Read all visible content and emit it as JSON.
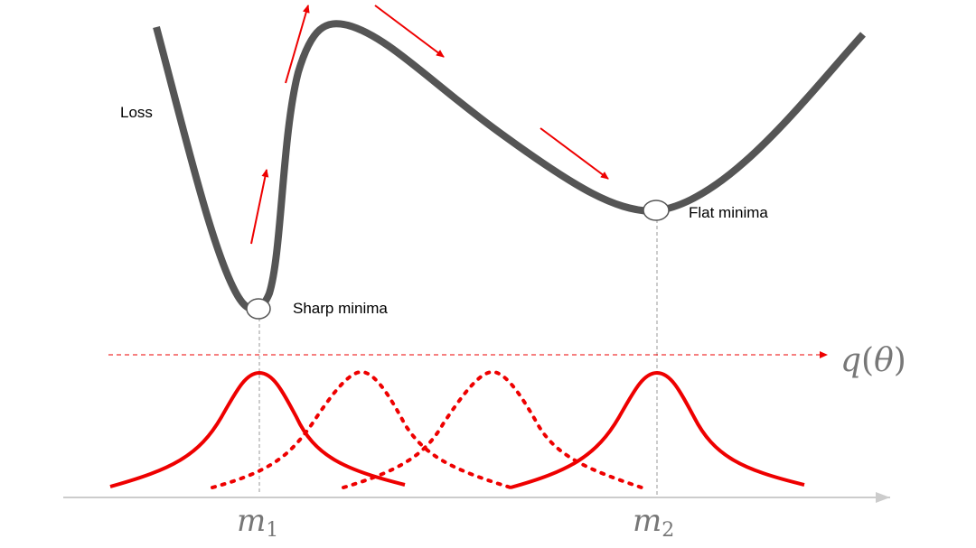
{
  "labels": {
    "loss": "Loss",
    "sharp_minima": "Sharp minima",
    "flat_minima": "Flat minima"
  },
  "math": {
    "q_main": "q",
    "q_paren_open": "(",
    "q_theta": "θ",
    "q_paren_close": ")",
    "m1_base": "m",
    "m1_sub": "1",
    "m2_base": "m",
    "m2_sub": "2"
  },
  "colors": {
    "loss_curve": "#555555",
    "accent_red": "#ee0000",
    "axis": "#cccccc",
    "guide": "#999999",
    "math_text": "#777777"
  }
}
